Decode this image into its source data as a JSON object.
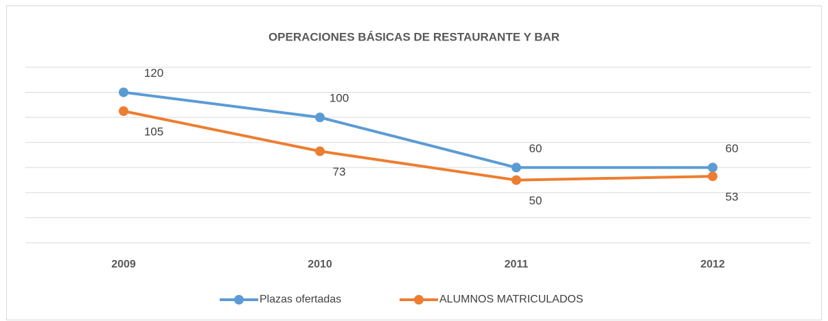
{
  "chart_data": {
    "type": "line",
    "title": "OPERACIONES BÁSICAS DE RESTAURANTE Y BAR",
    "categories": [
      "2009",
      "2010",
      "2011",
      "2012"
    ],
    "series": [
      {
        "name": "Plazas ofertadas",
        "color": "#5b9bd5",
        "values": [
          120,
          100,
          60,
          60
        ]
      },
      {
        "name": "ALUMNOS MATRICULADOS",
        "color": "#ed7d31",
        "values": [
          105,
          73,
          50,
          53
        ]
      }
    ],
    "ylim": [
      0,
      140
    ],
    "yticks": [
      0,
      20,
      40,
      60,
      80,
      100,
      120,
      140
    ],
    "grid": true,
    "legend": "bottom"
  }
}
